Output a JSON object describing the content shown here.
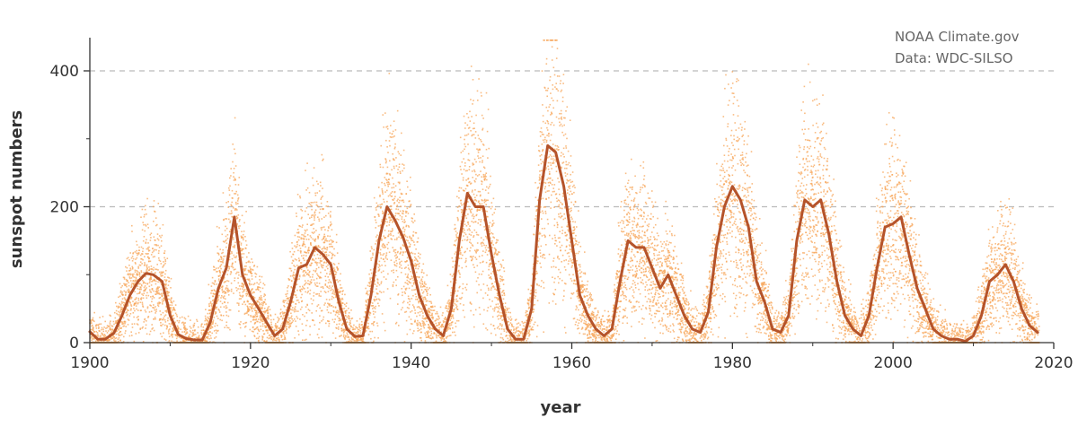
{
  "credits": {
    "line1": "NOAA Climate.gov",
    "line2": "Data: WDC-SILSO"
  },
  "chart_data": {
    "type": "line",
    "xlabel": "year",
    "ylabel": "sunspot numbers",
    "xlim": [
      1900,
      2020
    ],
    "ylim": [
      0,
      450
    ],
    "x_ticks": [
      1900,
      1920,
      1940,
      1960,
      1980,
      2000,
      2020
    ],
    "y_ticks": [
      0,
      200,
      400
    ],
    "grid": {
      "horizontal_dashed_at": [
        200,
        400
      ],
      "vertical": false
    },
    "colors": {
      "daily": "#f7a55a",
      "smoothed": "#b5532a",
      "axis": "#333333",
      "grid": "#bbbbbb"
    },
    "series": [
      {
        "style": "daily-scatter",
        "note_values": "daily scatter shown as dense orange dots around the smoothed curve"
      },
      {
        "style": "smoothed-line",
        "x": [
          1900.0,
          1901.0,
          1901.9,
          1903.0,
          1904.0,
          1905.0,
          1906.0,
          1907.0,
          1907.9,
          1909.0,
          1910.0,
          1911.0,
          1912.0,
          1913.0,
          1914.0,
          1915.0,
          1916.0,
          1917.0,
          1918.0,
          1919.0,
          1920.0,
          1921.0,
          1922.0,
          1923.0,
          1924.0,
          1925.0,
          1926.0,
          1927.0,
          1928.0,
          1929.0,
          1930.0,
          1931.0,
          1932.0,
          1933.0,
          1934.0,
          1935.0,
          1936.0,
          1937.0,
          1938.0,
          1939.0,
          1940.0,
          1941.0,
          1942.0,
          1943.0,
          1944.0,
          1945.0,
          1946.0,
          1947.0,
          1948.0,
          1949.0,
          1950.0,
          1951.0,
          1952.0,
          1953.0,
          1954.0,
          1955.0,
          1956.0,
          1957.0,
          1958.0,
          1959.0,
          1960.0,
          1961.0,
          1962.0,
          1963.0,
          1964.0,
          1965.0,
          1966.0,
          1967.0,
          1968.0,
          1969.0,
          1970.0,
          1971.0,
          1972.0,
          1973.0,
          1974.0,
          1975.0,
          1976.0,
          1977.0,
          1978.0,
          1979.0,
          1980.0,
          1981.0,
          1982.0,
          1983.0,
          1984.0,
          1985.0,
          1986.0,
          1987.0,
          1988.0,
          1989.0,
          1990.0,
          1991.0,
          1992.0,
          1993.0,
          1994.0,
          1995.0,
          1996.0,
          1997.0,
          1998.0,
          1999.0,
          2000.0,
          2001.0,
          2002.0,
          2003.0,
          2004.0,
          2005.0,
          2006.0,
          2007.0,
          2008.0,
          2009.0,
          2010.0,
          2011.0,
          2012.0,
          2013.0,
          2014.0,
          2015.0,
          2016.0,
          2017.0,
          2018.0
        ],
        "y": [
          16,
          5,
          5,
          14,
          40,
          70,
          90,
          102,
          100,
          90,
          40,
          12,
          6,
          4,
          4,
          30,
          80,
          110,
          185,
          100,
          70,
          50,
          30,
          10,
          20,
          60,
          110,
          115,
          140,
          130,
          115,
          60,
          20,
          9,
          10,
          70,
          150,
          200,
          180,
          155,
          120,
          70,
          40,
          20,
          10,
          50,
          150,
          220,
          200,
          200,
          130,
          70,
          20,
          5,
          5,
          50,
          210,
          290,
          280,
          230,
          150,
          70,
          40,
          20,
          10,
          20,
          90,
          150,
          140,
          140,
          110,
          80,
          100,
          70,
          40,
          20,
          15,
          45,
          140,
          200,
          230,
          210,
          170,
          90,
          60,
          20,
          15,
          40,
          150,
          210,
          200,
          210,
          160,
          90,
          40,
          20,
          10,
          40,
          110,
          170,
          175,
          185,
          130,
          80,
          50,
          20,
          10,
          5,
          5,
          2,
          10,
          40,
          90,
          100,
          115,
          90,
          50,
          25,
          15
        ]
      }
    ]
  }
}
